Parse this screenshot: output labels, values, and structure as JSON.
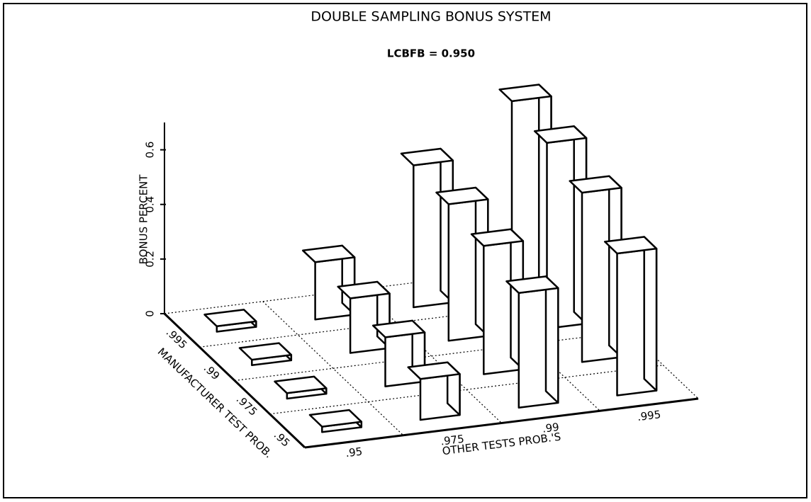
{
  "chart_data": {
    "type": "bar3d",
    "title": "DOUBLE SAMPLING BONUS SYSTEM",
    "subtitle": "LCBFB = 0.950",
    "x_label": "OTHER TESTS PROB.'S",
    "y_label": "MANUFACTURER TEST PROB.",
    "z_label": "BONUS PERCENT",
    "x_categories": [
      ".95",
      ".975",
      ".99",
      ".995"
    ],
    "y_categories": [
      ".995",
      ".99",
      ".975",
      ".95"
    ],
    "values": [
      [
        0.02,
        0.21,
        0.52,
        0.71
      ],
      [
        0.02,
        0.2,
        0.5,
        0.68
      ],
      [
        0.02,
        0.18,
        0.47,
        0.62
      ],
      [
        0.02,
        0.15,
        0.42,
        0.52
      ]
    ],
    "color": "#ffffff",
    "zlim": [
      0,
      0.7
    ],
    "zticks": [
      0,
      0.2,
      0.4,
      0.6
    ],
    "grid": true
  }
}
